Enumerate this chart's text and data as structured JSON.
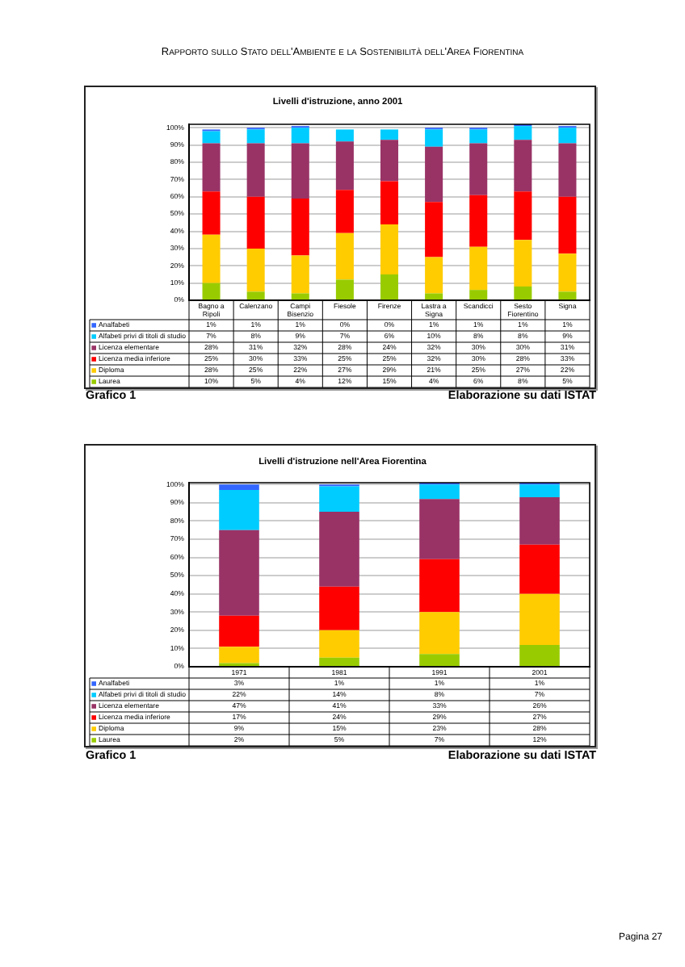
{
  "chart_data": [
    {
      "type": "bar",
      "title": "Livelli d'istruzione, anno 2001",
      "categories": [
        "Bagno a Ripoli",
        "Calenzano",
        "Campi Bisenzio",
        "Fiesole",
        "Firenze",
        "Lastra a Signa",
        "Scandicci",
        "Sesto Fiorentino",
        "Signa"
      ],
      "stacked": true,
      "ylim": [
        0,
        102
      ],
      "yticks": [
        {
          "value": 0,
          "label": "0%"
        },
        {
          "value": 10,
          "label": "10%"
        },
        {
          "value": 20,
          "label": "20%"
        },
        {
          "value": 30,
          "label": "30%"
        },
        {
          "value": 40,
          "label": "40%"
        },
        {
          "value": 50,
          "label": "50%"
        },
        {
          "value": 60,
          "label": "60%"
        },
        {
          "value": 70,
          "label": "70%"
        },
        {
          "value": 80,
          "label": "80%"
        },
        {
          "value": 90,
          "label": "90%"
        },
        {
          "value": 100,
          "label": "100%"
        }
      ],
      "grid": "y",
      "legend": "bottom",
      "series": [
        {
          "name": "Laurea",
          "color": "#99cc00",
          "values": [
            10,
            5,
            4,
            12,
            15,
            4,
            6,
            8,
            5
          ],
          "value_labels": [
            "10%",
            "5%",
            "4%",
            "12%",
            "15%",
            "4%",
            "6%",
            "8%",
            "5%"
          ]
        },
        {
          "name": "Diploma",
          "color": "#ffcc00",
          "values": [
            28,
            25,
            22,
            27,
            29,
            21,
            25,
            27,
            22
          ],
          "value_labels": [
            "28%",
            "25%",
            "22%",
            "27%",
            "29%",
            "21%",
            "25%",
            "27%",
            "22%"
          ]
        },
        {
          "name": "Licenza media inferiore",
          "color": "#ff0000",
          "values": [
            25,
            30,
            33,
            25,
            25,
            32,
            30,
            28,
            33
          ],
          "value_labels": [
            "25%",
            "30%",
            "33%",
            "25%",
            "25%",
            "32%",
            "30%",
            "28%",
            "33%"
          ]
        },
        {
          "name": "Licenza elementare",
          "color": "#993366",
          "values": [
            28,
            31,
            32,
            28,
            24,
            32,
            30,
            30,
            31
          ],
          "value_labels": [
            "28%",
            "31%",
            "32%",
            "28%",
            "24%",
            "32%",
            "30%",
            "30%",
            "31%"
          ]
        },
        {
          "name": "Alfabeti privi di titoli di studio",
          "color": "#00ccff",
          "values": [
            7,
            8,
            9,
            7,
            6,
            10,
            8,
            8,
            9
          ],
          "value_labels": [
            "7%",
            "8%",
            "9%",
            "7%",
            "6%",
            "10%",
            "8%",
            "8%",
            "9%"
          ]
        },
        {
          "name": "Analfabeti",
          "color": "#3366ff",
          "values": [
            1,
            1,
            1,
            0,
            0,
            1,
            1,
            1,
            1
          ],
          "value_labels": [
            "1%",
            "1%",
            "1%",
            "0%",
            "0%",
            "1%",
            "1%",
            "1%",
            "1%"
          ]
        }
      ],
      "annotations": [
        "Rapporto sullo Stato dell'Ambiente e la Sostenibilità dell'Area Fiorentina",
        "Grafico 1",
        "Elaborazione su dati ISTAT"
      ]
    },
    {
      "type": "bar",
      "title": "Livelli d'istruzione nell'Area Fiorentina",
      "categories": [
        "1971",
        "1981",
        "1991",
        "2001"
      ],
      "stacked": true,
      "ylim": [
        0,
        101
      ],
      "yticks": [
        {
          "value": 0,
          "label": "0%"
        },
        {
          "value": 10,
          "label": "10%"
        },
        {
          "value": 20,
          "label": "20%"
        },
        {
          "value": 30,
          "label": "30%"
        },
        {
          "value": 40,
          "label": "40%"
        },
        {
          "value": 50,
          "label": "50%"
        },
        {
          "value": 60,
          "label": "60%"
        },
        {
          "value": 70,
          "label": "70%"
        },
        {
          "value": 80,
          "label": "80%"
        },
        {
          "value": 90,
          "label": "90%"
        },
        {
          "value": 100,
          "label": "100%"
        }
      ],
      "grid": "y",
      "legend": "bottom",
      "series": [
        {
          "name": "Laurea",
          "color": "#99cc00",
          "values": [
            2,
            5,
            7,
            12
          ],
          "value_labels": [
            "2%",
            "5%",
            "7%",
            "12%"
          ]
        },
        {
          "name": "Diploma",
          "color": "#ffcc00",
          "values": [
            9,
            15,
            23,
            28
          ],
          "value_labels": [
            "9%",
            "15%",
            "23%",
            "28%"
          ]
        },
        {
          "name": "Licenza media inferiore",
          "color": "#ff0000",
          "values": [
            17,
            24,
            29,
            27
          ],
          "value_labels": [
            "17%",
            "24%",
            "29%",
            "27%"
          ]
        },
        {
          "name": "Licenza elementare",
          "color": "#993366",
          "values": [
            47,
            41,
            33,
            26
          ],
          "value_labels": [
            "47%",
            "41%",
            "33%",
            "26%"
          ]
        },
        {
          "name": "Alfabeti privi di titoli di studio",
          "color": "#00ccff",
          "values": [
            22,
            14,
            8,
            7
          ],
          "value_labels": [
            "22%",
            "14%",
            "8%",
            "7%"
          ]
        },
        {
          "name": "Analfabeti",
          "color": "#3366ff",
          "values": [
            3,
            1,
            1,
            1
          ],
          "value_labels": [
            "3%",
            "1%",
            "1%",
            "1%"
          ]
        }
      ],
      "annotations": [
        "Grafico 1",
        "Elaborazione su dati ISTAT",
        "Pagina 27"
      ]
    }
  ]
}
